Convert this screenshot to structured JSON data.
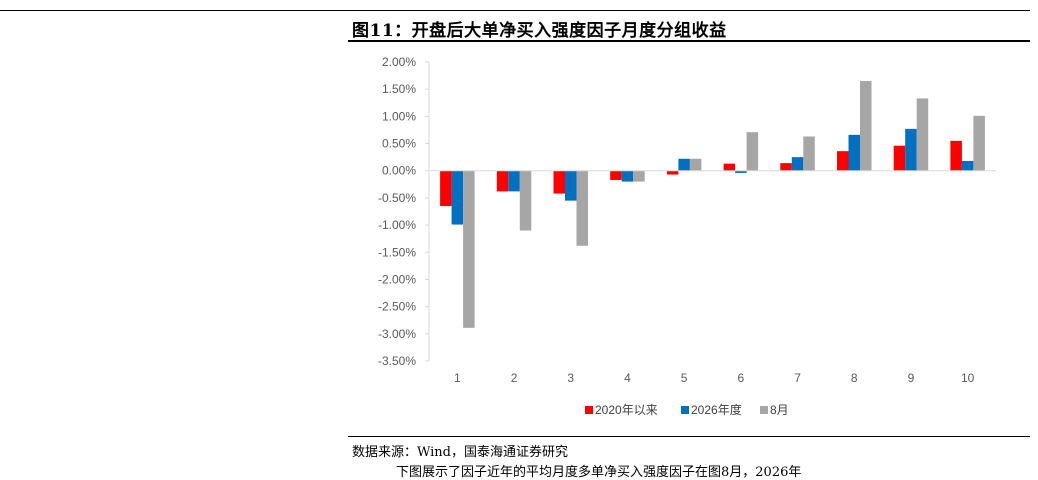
{
  "figure": {
    "title": "图11：开盘后大单净买入强度因子月度分组收益",
    "source": "数据来源：Wind，国泰海通证券研究",
    "footnote": "下图展示了因子近年的平均月度多单净买入强度因子在图8月，2026年"
  },
  "colors": {
    "series": [
      "#ff0000",
      "#0070c0",
      "#a6a6a6"
    ],
    "axis": "#d9d9d9",
    "text": "#595959"
  },
  "chart_data": {
    "type": "bar",
    "title": "开盘后大单净买入强度因子月度分组收益",
    "xlabel": "",
    "ylabel": "",
    "categories": [
      "1",
      "2",
      "3",
      "4",
      "5",
      "6",
      "7",
      "8",
      "9",
      "10"
    ],
    "ylim": [
      -0.035,
      0.02
    ],
    "yticks": [
      0.02,
      0.015,
      0.01,
      0.005,
      0.0,
      -0.005,
      -0.01,
      -0.015,
      -0.02,
      -0.025,
      -0.03,
      -0.035
    ],
    "ytick_labels": [
      "2.00%",
      "1.50%",
      "1.00%",
      "0.50%",
      "0.00%",
      "-0.50%",
      "-1.00%",
      "-1.50%",
      "-2.00%",
      "-2.50%",
      "-3.00%",
      "-3.50%"
    ],
    "grid": false,
    "legend_position": "bottom",
    "series": [
      {
        "name": "2020年以来",
        "values": [
          -0.0065,
          -0.0038,
          -0.0042,
          -0.0017,
          -0.0007,
          0.0013,
          0.0014,
          0.0036,
          0.0046,
          0.0055
        ]
      },
      {
        "name": "2026年度",
        "values": [
          -0.0099,
          -0.0038,
          -0.0055,
          -0.002,
          0.0022,
          -0.0004,
          0.0025,
          0.0066,
          0.0077,
          0.0018
        ]
      },
      {
        "name": "8月",
        "values": [
          -0.0289,
          -0.011,
          -0.0138,
          -0.002,
          0.0022,
          0.0071,
          0.0063,
          0.0165,
          0.0133,
          0.0101
        ]
      }
    ]
  }
}
